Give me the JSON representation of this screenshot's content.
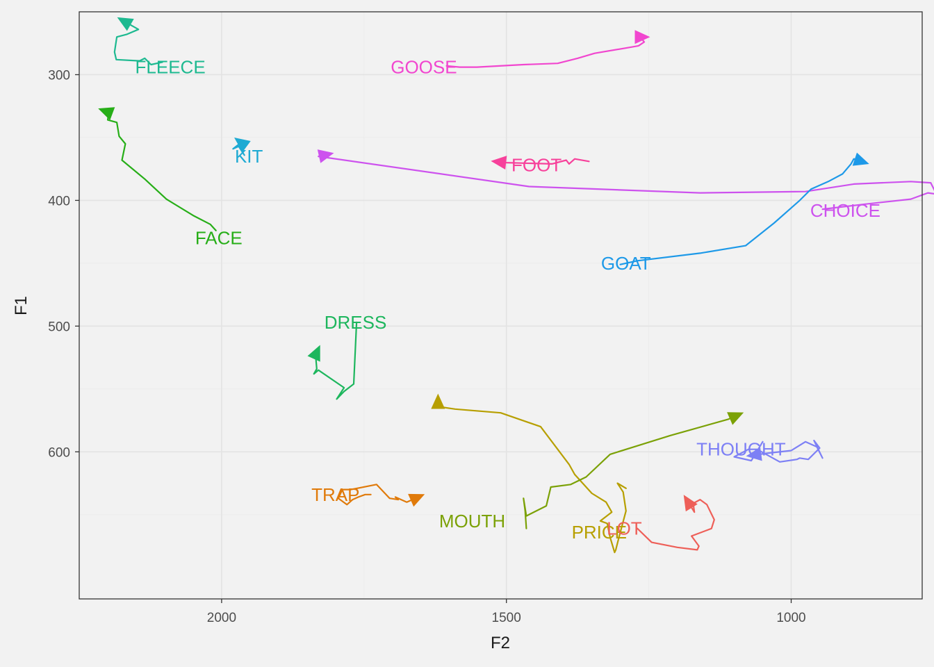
{
  "chart_data": {
    "type": "line",
    "title": "",
    "xlabel": "F2",
    "ylabel": "F1",
    "x_reversed": true,
    "y_reversed": true,
    "xlim": [
      2250,
      770
    ],
    "ylim": [
      250,
      717
    ],
    "x_ticks": [
      2000,
      1500,
      1000
    ],
    "y_ticks": [
      300,
      400,
      500,
      600
    ],
    "x_tick_labels": [
      "2000",
      "1500",
      "1000"
    ],
    "y_tick_labels": [
      "300",
      "400",
      "500",
      "600"
    ],
    "grid": true,
    "legend": "none",
    "series": [
      {
        "name": "FLEECE",
        "color": "#1DB990",
        "label_at": [
          2090,
          294
        ],
        "points": [
          [
            2104,
            290
          ],
          [
            2124,
            292
          ],
          [
            2135,
            287
          ],
          [
            2144,
            289
          ],
          [
            2185,
            288
          ],
          [
            2188,
            282
          ],
          [
            2184,
            270
          ],
          [
            2167,
            268
          ],
          [
            2146,
            264
          ],
          [
            2177,
            256
          ]
        ]
      },
      {
        "name": "GOOSE",
        "color": "#F146CF",
        "label_at": [
          1645,
          294
        ],
        "points": [
          [
            1605,
            293
          ],
          [
            1582,
            294
          ],
          [
            1552,
            294
          ],
          [
            1470,
            292
          ],
          [
            1410,
            291
          ],
          [
            1375,
            287
          ],
          [
            1345,
            283
          ],
          [
            1280,
            278
          ],
          [
            1268,
            277
          ],
          [
            1258,
            274
          ],
          [
            1265,
            270
          ],
          [
            1255,
            270
          ]
        ]
      },
      {
        "name": "FACE",
        "color": "#27AE18",
        "label_at": [
          2005,
          430
        ],
        "points": [
          [
            2010,
            424
          ],
          [
            2020,
            419
          ],
          [
            2050,
            412
          ],
          [
            2097,
            399
          ],
          [
            2135,
            383
          ],
          [
            2175,
            368
          ],
          [
            2169,
            355
          ],
          [
            2180,
            349
          ],
          [
            2184,
            338
          ],
          [
            2200,
            336
          ],
          [
            2198,
            330
          ],
          [
            2210,
            328
          ]
        ]
      },
      {
        "name": "KIT",
        "color": "#1EAAD3",
        "label_at": [
          1952,
          365
        ],
        "points": [
          [
            1960,
            364
          ],
          [
            1970,
            357
          ],
          [
            1980,
            359
          ],
          [
            1966,
            354
          ],
          [
            1972,
            352
          ]
        ]
      },
      {
        "name": "FOOT",
        "color": "#F7419B",
        "label_at": [
          1447,
          372
        ],
        "points": [
          [
            1355,
            369
          ],
          [
            1380,
            367
          ],
          [
            1390,
            371
          ],
          [
            1395,
            368
          ],
          [
            1420,
            371
          ],
          [
            1500,
            370
          ],
          [
            1520,
            369
          ]
        ]
      },
      {
        "name": "CHOICE",
        "color": "#CD52EE",
        "label_at": [
          905,
          408
        ],
        "points": [
          [
            945,
            407
          ],
          [
            870,
            403
          ],
          [
            790,
            399
          ],
          [
            760,
            394
          ],
          [
            745,
            395
          ],
          [
            755,
            386
          ],
          [
            790,
            385
          ],
          [
            890,
            387
          ],
          [
            975,
            393
          ],
          [
            1160,
            394
          ],
          [
            1460,
            389
          ],
          [
            1830,
            365
          ],
          [
            1810,
            363
          ]
        ]
      },
      {
        "name": "GOAT",
        "color": "#1D99E8",
        "label_at": [
          1290,
          450
        ],
        "points": [
          [
            1300,
            451
          ],
          [
            1270,
            448
          ],
          [
            1160,
            442
          ],
          [
            1080,
            436
          ],
          [
            1030,
            418
          ],
          [
            985,
            400
          ],
          [
            965,
            391
          ],
          [
            935,
            385
          ],
          [
            910,
            379
          ],
          [
            895,
            371
          ],
          [
            890,
            367
          ],
          [
            870,
            370
          ]
        ]
      },
      {
        "name": "DRESS",
        "color": "#1DB65D",
        "label_at": [
          1765,
          497
        ],
        "points": [
          [
            1763,
            497
          ],
          [
            1768,
            546
          ],
          [
            1785,
            552
          ],
          [
            1798,
            558
          ],
          [
            1785,
            549
          ],
          [
            1830,
            535
          ],
          [
            1838,
            538
          ],
          [
            1833,
            534
          ],
          [
            1835,
            523
          ],
          [
            1830,
            518
          ]
        ]
      },
      {
        "name": "PRICE",
        "color": "#B79F00",
        "label_at": [
          1337,
          664
        ],
        "points": [
          [
            1290,
            629
          ],
          [
            1305,
            625
          ],
          [
            1295,
            632
          ],
          [
            1290,
            647
          ],
          [
            1303,
            669
          ],
          [
            1308,
            678
          ],
          [
            1310,
            680
          ],
          [
            1318,
            668
          ],
          [
            1323,
            657
          ],
          [
            1335,
            655
          ],
          [
            1315,
            648
          ],
          [
            1325,
            640
          ],
          [
            1350,
            633
          ],
          [
            1380,
            618
          ],
          [
            1390,
            610
          ],
          [
            1440,
            580
          ],
          [
            1510,
            569
          ],
          [
            1590,
            566
          ],
          [
            1620,
            564
          ],
          [
            1620,
            557
          ]
        ]
      },
      {
        "name": "THOUGHT",
        "color": "#7D80F5",
        "label_at": [
          1088,
          598
        ],
        "points": [
          [
            1050,
            592
          ],
          [
            1070,
            607
          ],
          [
            1100,
            604
          ],
          [
            1075,
            598
          ],
          [
            1060,
            598
          ],
          [
            1020,
            608
          ],
          [
            990,
            606
          ],
          [
            985,
            605
          ],
          [
            970,
            606
          ],
          [
            950,
            597
          ],
          [
            960,
            591
          ],
          [
            945,
            605
          ],
          [
            955,
            596
          ],
          [
            975,
            592
          ],
          [
            1000,
            599
          ],
          [
            1040,
            601
          ],
          [
            1072,
            603
          ]
        ]
      },
      {
        "name": "MOUTH",
        "color": "#7BA106",
        "label_at": [
          1560,
          655
        ],
        "points": [
          [
            1465,
            661
          ],
          [
            1467,
            647
          ],
          [
            1470,
            637
          ],
          [
            1465,
            651
          ],
          [
            1430,
            643
          ],
          [
            1422,
            628
          ],
          [
            1387,
            626
          ],
          [
            1360,
            620
          ],
          [
            1318,
            602
          ],
          [
            1212,
            587
          ],
          [
            1110,
            574
          ],
          [
            1090,
            570
          ]
        ]
      },
      {
        "name": "TRAP",
        "color": "#E07A0A",
        "label_at": [
          1800,
          634
        ],
        "points": [
          [
            1738,
            634
          ],
          [
            1748,
            634
          ],
          [
            1760,
            636
          ],
          [
            1770,
            638
          ],
          [
            1780,
            642
          ],
          [
            1795,
            637
          ],
          [
            1788,
            630
          ],
          [
            1773,
            630
          ],
          [
            1728,
            626
          ],
          [
            1705,
            637
          ],
          [
            1690,
            638
          ],
          [
            1695,
            636
          ],
          [
            1675,
            640
          ],
          [
            1650,
            635
          ]
        ]
      },
      {
        "name": "LOT",
        "color": "#EE5F58",
        "label_at": [
          1293,
          661
        ],
        "points": [
          [
            1270,
            661
          ],
          [
            1245,
            672
          ],
          [
            1200,
            676
          ],
          [
            1165,
            678
          ],
          [
            1162,
            675
          ],
          [
            1175,
            667
          ],
          [
            1140,
            661
          ],
          [
            1135,
            654
          ],
          [
            1148,
            642
          ],
          [
            1160,
            638
          ],
          [
            1172,
            641
          ],
          [
            1170,
            648
          ],
          [
            1185,
            637
          ]
        ]
      }
    ]
  }
}
